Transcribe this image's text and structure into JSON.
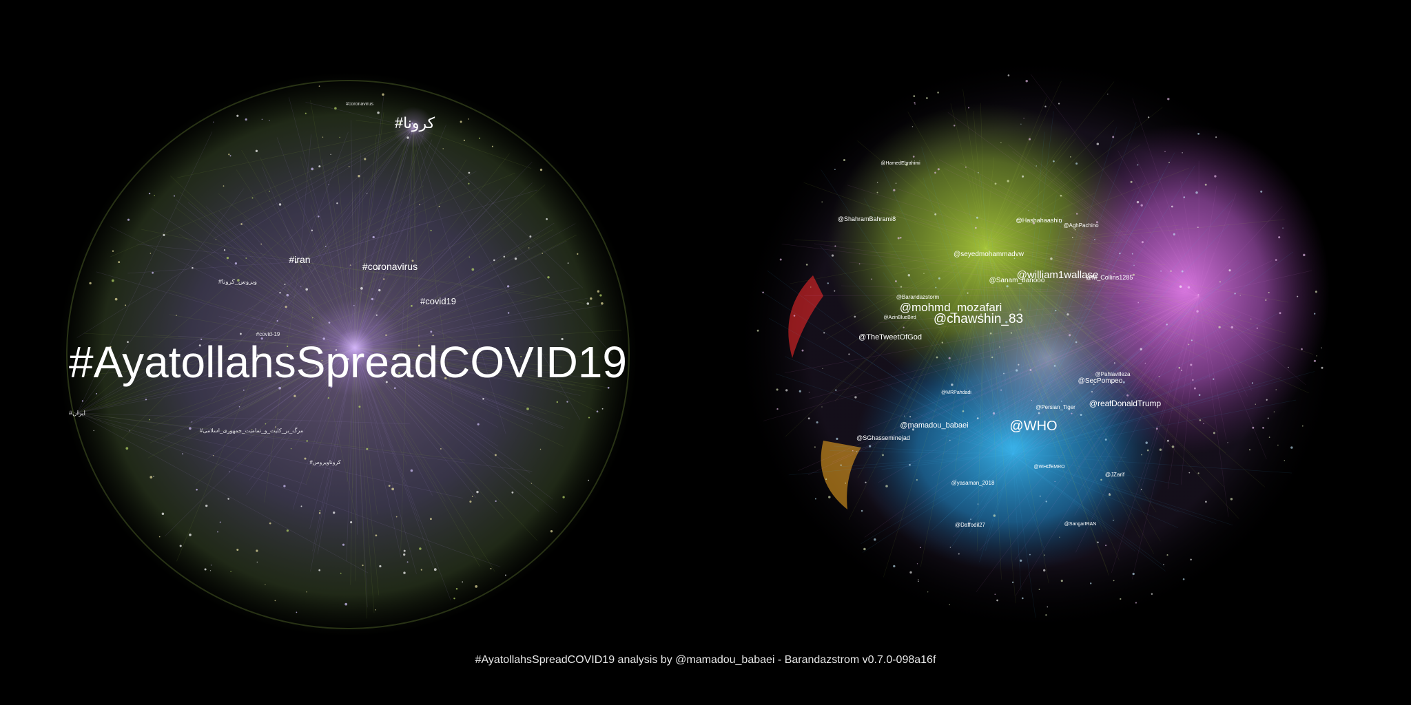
{
  "footer": "#AyatollahsSpreadCOVID19 analysis by @mamadou_babaei - Barandazstrom v0.7.0-098a16f",
  "hashtag_graph": {
    "labels": [
      "#AyatollahsSpreadCOVID19",
      "#کرونا",
      "#coronavirus",
      "#iran",
      "#covid19",
      "#ویروس_کرونا",
      "#covid-19",
      "#ایران",
      "#coronavirus",
      "#کروناویروس",
      "#مرگ_بر_کلیت_و_تمامیت_جمهوری_اسلامی"
    ],
    "colors": {
      "hub": "#c9a6ff",
      "edge_main": "#8a74b8",
      "edge_alt": "#7f9b3a"
    }
  },
  "mention_graph": {
    "labels": [
      "@WHO",
      "@chawshin_83",
      "@mohmd_mozafari",
      "@william1wallase",
      "@realDonaldTrump",
      "@mamadou_babaei",
      "@TheTweetOfGod",
      "@SecPompeo",
      "@seyedmohammadvw",
      "@Sanam_banooo",
      "@M_Collins1285",
      "@ShahramBahrami8",
      "@Hashahaashin",
      "@AghPachino",
      "@SGhasseminejad",
      "@Barandazstorm",
      "@Pahlavillezа",
      "@Persian_Tiger",
      "@yasaman_2018",
      "@Daffodil27",
      "@JZarif",
      "@MRPahdadi",
      "@HamedEbrahimi",
      "@AzinBlueBird",
      "@WHOEMRO",
      "@SangarIRAN"
    ],
    "colors": {
      "green": "#9fc23a",
      "magenta": "#d36ad8",
      "cyan": "#2aa6e6",
      "red": "#ff3030",
      "orange": "#e8a020"
    }
  }
}
